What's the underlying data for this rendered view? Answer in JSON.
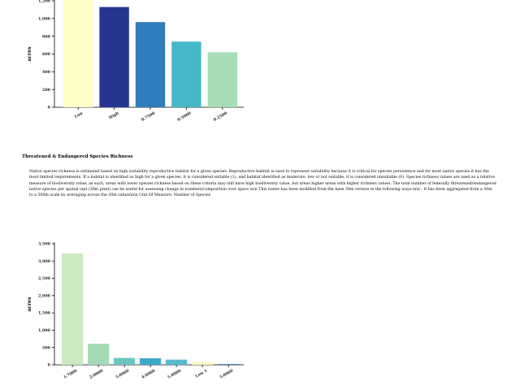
{
  "chart_data": [
    {
      "type": "bar",
      "categories": [
        "Low",
        "High",
        "0.7500",
        "0.5000",
        "0.2500"
      ],
      "values": [
        1240,
        1130,
        960,
        740,
        620
      ],
      "ylabel": "acres",
      "yticks": [
        "0",
        "200",
        "400",
        "600",
        "800",
        "1,000",
        "1,200"
      ],
      "ylim": [
        0,
        1200
      ],
      "colors": [
        "#fefdc8",
        "#27358e",
        "#2f7dbb",
        "#45b7c8",
        "#a7dcb7"
      ]
    },
    {
      "type": "bar",
      "categories": [
        "1.7000",
        "2.0000",
        "3.0000",
        "4.0000",
        "5.0000",
        "Low 1",
        "3.0000"
      ],
      "values": [
        3220,
        610,
        200,
        190,
        150,
        80,
        20
      ],
      "ylabel": "acres",
      "yticks": [
        "0",
        "500",
        "1,000",
        "1,500",
        "2,000",
        "2,500",
        "3,000",
        "3,500"
      ],
      "ylim": [
        0,
        3500
      ],
      "colors": [
        "#cbe9c1",
        "#a4dab6",
        "#6cc6c0",
        "#3ea8c9",
        "#56b9cc",
        "#f7f9c0",
        "#2a6cb0"
      ]
    }
  ],
  "section": {
    "title": "Threatened & Endangered Species Richness",
    "description": "Native species richness is estimated based on high suitability reproductive habitat for a given species. Reproductive habitat is used to represent suitability because it is critical for species persistence and for most native species it has the most limited requirements. If a habitat is identified as high for a given species, it is considered suitable (1), and habitat identified as moderate, low or not suitable, it is considered unsuitable (0). Species richness values are used as a relative measure of biodiversity value; as such, areas with lower species richness based on these criteria may still have high biodiversity value, but areas higher areas with higher richness values. The total number of federally threatened/endangered native species per spatial unit (30m pixel) can be useful for assessing change in numbers/composition over space \\n\\n This raster has been modified from the base 30m version in the following ways:\\n\\n - It has been aggregated from a 30m to a 300m scale by averaging across the 30m values\\n\\n Unit Of Measure: Number of Species"
  }
}
